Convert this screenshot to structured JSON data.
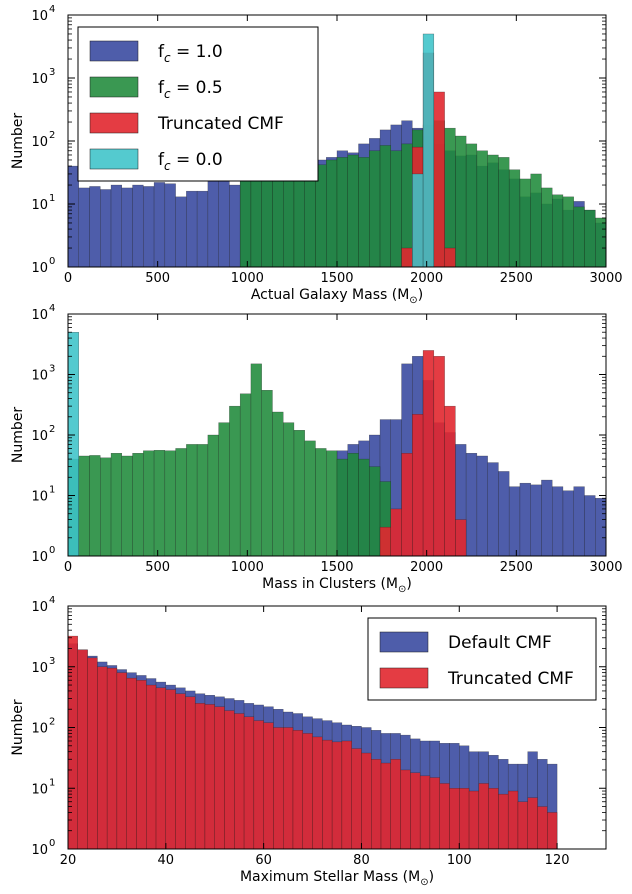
{
  "colors": {
    "fc1": "#3f4fa3",
    "fc05": "#1f8a3a",
    "trunc": "#e1272f",
    "fc0": "#3cc3c8",
    "default": "#3f4fa3"
  },
  "chart_data": [
    {
      "type": "bar",
      "name": "panel-actual-galaxy-mass",
      "xlabel": "Actual Galaxy Mass (M",
      "xlabel_sub": "⊙",
      "xlabel_close": ")",
      "ylabel": "Number",
      "xlim": [
        0,
        3000
      ],
      "ylim": [
        1,
        10000
      ],
      "yscale": "log",
      "xticks": [
        0,
        500,
        1000,
        1500,
        2000,
        2500,
        3000
      ],
      "yticks": [
        {
          "base": "10",
          "exp": "0"
        },
        {
          "base": "10",
          "exp": "1"
        },
        {
          "base": "10",
          "exp": "2"
        },
        {
          "base": "10",
          "exp": "3"
        },
        {
          "base": "10",
          "exp": "4"
        }
      ],
      "legend": {
        "loc": "upper-left",
        "entries": [
          {
            "label_main": "f",
            "label_sub": "c",
            "label_rest": " = 1.0",
            "color_key": "fc1"
          },
          {
            "label_main": "f",
            "label_sub": "c",
            "label_rest": " = 0.5",
            "color_key": "fc05"
          },
          {
            "label_main": "Truncated CMF",
            "label_sub": "",
            "label_rest": "",
            "color_key": "trunc"
          },
          {
            "label_main": "f",
            "label_sub": "c",
            "label_rest": " = 0.0",
            "color_key": "fc0"
          }
        ]
      },
      "series": [
        {
          "color_key": "fc1",
          "bins": {
            "start": 0,
            "width": 60
          },
          "values": [
            40,
            18,
            19,
            17,
            20,
            18,
            20,
            19,
            22,
            21,
            13,
            16,
            16,
            27,
            30,
            20,
            32,
            30,
            29,
            30,
            35,
            36,
            40,
            50,
            55,
            70,
            65,
            90,
            110,
            150,
            180,
            210,
            160,
            120,
            90,
            70,
            58,
            60,
            40,
            45,
            35,
            25,
            13,
            15,
            10,
            12,
            8,
            11,
            8,
            5
          ]
        },
        {
          "color_key": "fc05",
          "bins": {
            "start": 960,
            "width": 60
          },
          "values": [
            45,
            43,
            39,
            45,
            41,
            38,
            40,
            42,
            50,
            55,
            60,
            55,
            70,
            85,
            70,
            90,
            150,
            180,
            210,
            160,
            120,
            90,
            70,
            60,
            55,
            35,
            25,
            30,
            18,
            14,
            13,
            9,
            8,
            6,
            3
          ]
        },
        {
          "color_key": "trunc",
          "bins": {
            "start": 1860,
            "width": 60
          },
          "values": [
            2,
            80,
            2500,
            600,
            2
          ]
        },
        {
          "color_key": "fc0",
          "bins": {
            "start": 1920,
            "width": 60
          },
          "values": [
            30,
            5000
          ]
        }
      ]
    },
    {
      "type": "bar",
      "name": "panel-mass-in-clusters",
      "xlabel": "Mass in Clusters (M",
      "xlabel_sub": "⊙",
      "xlabel_close": ")",
      "ylabel": "Number",
      "xlim": [
        0,
        3000
      ],
      "ylim": [
        1,
        10000
      ],
      "yscale": "log",
      "xticks": [
        0,
        500,
        1000,
        1500,
        2000,
        2500,
        3000
      ],
      "yticks": [
        {
          "base": "10",
          "exp": "0"
        },
        {
          "base": "10",
          "exp": "1"
        },
        {
          "base": "10",
          "exp": "2"
        },
        {
          "base": "10",
          "exp": "3"
        },
        {
          "base": "10",
          "exp": "4"
        }
      ],
      "series": [
        {
          "color_key": "fc1",
          "bins": {
            "start": 1500,
            "width": 60
          },
          "values": [
            55,
            70,
            80,
            100,
            180,
            180,
            1500,
            2000,
            800,
            160,
            110,
            70,
            50,
            45,
            35,
            25,
            14,
            16,
            15,
            18,
            14,
            12,
            14,
            10,
            9
          ]
        },
        {
          "color_key": "fc05",
          "bins": {
            "start": 0,
            "width": 60
          },
          "values": [
            40,
            45,
            46,
            42,
            50,
            45,
            50,
            55,
            56,
            55,
            60,
            70,
            70,
            100,
            160,
            300,
            480,
            1500,
            550,
            240,
            160,
            120,
            80,
            60,
            55,
            40,
            50,
            40,
            30,
            17
          ]
        },
        {
          "color_key": "trunc",
          "bins": {
            "start": 1740,
            "width": 60
          },
          "values": [
            3,
            6,
            50,
            220,
            2500,
            2000,
            300,
            4
          ]
        },
        {
          "color_key": "fc0",
          "bins": {
            "start": 0,
            "width": 60
          },
          "values": [
            5000
          ]
        }
      ]
    },
    {
      "type": "bar",
      "name": "panel-maximum-stellar-mass",
      "xlabel": "Maximum Stellar Mass (M",
      "xlabel_sub": "⊙",
      "xlabel_close": ")",
      "ylabel": "Number",
      "xlim": [
        20,
        130
      ],
      "ylim": [
        1,
        10000
      ],
      "yscale": "log",
      "xticks": [
        20,
        40,
        60,
        80,
        100,
        120
      ],
      "yticks": [
        {
          "base": "10",
          "exp": "0"
        },
        {
          "base": "10",
          "exp": "1"
        },
        {
          "base": "10",
          "exp": "2"
        },
        {
          "base": "10",
          "exp": "3"
        },
        {
          "base": "10",
          "exp": "4"
        }
      ],
      "legend": {
        "loc": "upper-right",
        "entries": [
          {
            "label_main": "Default CMF",
            "label_sub": "",
            "label_rest": "",
            "color_key": "default"
          },
          {
            "label_main": "Truncated CMF",
            "label_sub": "",
            "label_rest": "",
            "color_key": "trunc"
          }
        ]
      },
      "series": [
        {
          "color_key": "default",
          "bins": {
            "start": 20,
            "width": 2
          },
          "values": [
            2400,
            1900,
            1500,
            1200,
            1050,
            900,
            800,
            720,
            640,
            560,
            500,
            450,
            400,
            360,
            340,
            320,
            300,
            280,
            250,
            235,
            220,
            200,
            180,
            170,
            150,
            140,
            130,
            120,
            110,
            105,
            100,
            90,
            80,
            80,
            75,
            65,
            60,
            60,
            55,
            55,
            50,
            40,
            40,
            35,
            30,
            25,
            25,
            40,
            30,
            25
          ]
        },
        {
          "color_key": "trunc",
          "bins": {
            "start": 20,
            "width": 2
          },
          "values": [
            3200,
            1900,
            1400,
            1000,
            950,
            800,
            650,
            600,
            500,
            450,
            420,
            360,
            320,
            250,
            240,
            220,
            190,
            170,
            150,
            130,
            120,
            100,
            100,
            90,
            80,
            70,
            62,
            58,
            60,
            45,
            38,
            30,
            26,
            30,
            20,
            18,
            16,
            15,
            12,
            10,
            10,
            9,
            12,
            10,
            8,
            9,
            6,
            7,
            5,
            4
          ]
        }
      ]
    }
  ]
}
